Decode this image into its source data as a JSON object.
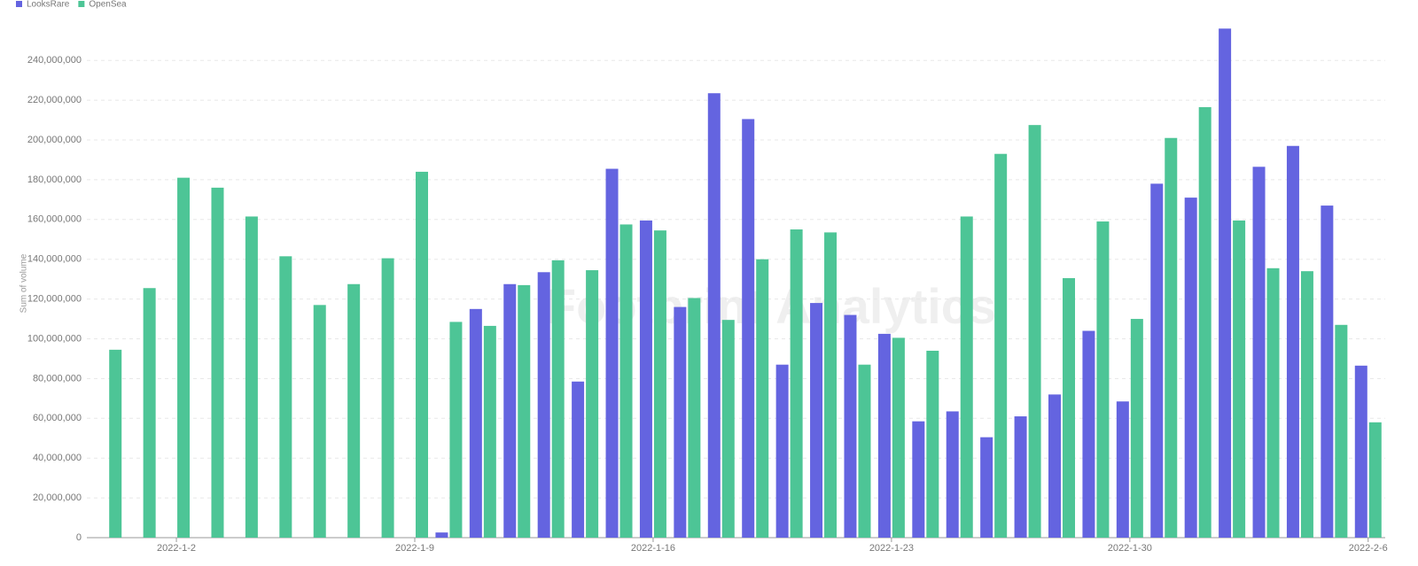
{
  "chart_data": {
    "type": "grouped-bar",
    "y_label": "Sum of volume",
    "watermark": "Footprint Analytics",
    "categories": [
      null,
      null,
      "2022-1-2",
      null,
      null,
      null,
      null,
      null,
      null,
      "2022-1-9",
      null,
      null,
      null,
      null,
      null,
      null,
      "2022-1-16",
      null,
      null,
      null,
      null,
      null,
      null,
      "2022-1-23",
      null,
      null,
      null,
      null,
      null,
      null,
      "2022-1-30",
      null,
      null,
      null,
      null,
      null,
      null,
      "2022-2-6"
    ],
    "series": [
      {
        "name": "LooksRare",
        "color": "#6464e0",
        "values": [
          0,
          0,
          0,
          0,
          0,
          0,
          0,
          0,
          0,
          0,
          2600000,
          115000000,
          127500000,
          133500000,
          78500000,
          185500000,
          159500000,
          116000000,
          223500000,
          210500000,
          87000000,
          118000000,
          112000000,
          102500000,
          58500000,
          63500000,
          50500000,
          61000000,
          72000000,
          104000000,
          68500000,
          178000000,
          171000000,
          256000000,
          186500000,
          197000000,
          167000000,
          86500000
        ]
      },
      {
        "name": "OpenSea",
        "color": "#4dc596",
        "values": [
          94500000,
          125500000,
          181000000,
          176000000,
          161500000,
          141500000,
          117000000,
          127500000,
          140500000,
          184000000,
          108500000,
          106500000,
          127000000,
          139500000,
          134500000,
          157500000,
          154500000,
          120500000,
          109500000,
          140000000,
          155000000,
          153500000,
          87000000,
          100500000,
          94000000,
          161500000,
          193000000,
          207500000,
          130500000,
          159000000,
          110000000,
          201000000,
          216500000,
          159500000,
          135500000,
          134000000,
          107000000,
          58000000
        ]
      }
    ],
    "ylim": [
      0,
      260000000
    ],
    "yticks": [
      0,
      {
        "value": 20000000,
        "label": "20,000,000"
      },
      {
        "value": 40000000,
        "label": "40,000,000"
      },
      {
        "value": 60000000,
        "label": "60,000,000"
      },
      {
        "value": 80000000,
        "label": "80,000,000"
      },
      {
        "value": 100000000,
        "label": "100,000,000"
      },
      {
        "value": 120000000,
        "label": "120,000,000"
      },
      {
        "value": 140000000,
        "label": "140,000,000"
      },
      {
        "value": 160000000,
        "label": "160,000,000"
      },
      {
        "value": 180000000,
        "label": "180,000,000"
      },
      {
        "value": 200000000,
        "label": "200,000,000"
      },
      {
        "value": 220000000,
        "label": "220,000,000"
      },
      {
        "value": 240000000,
        "label": "240,000,000"
      }
    ],
    "grid": true,
    "legend": "top-left"
  }
}
